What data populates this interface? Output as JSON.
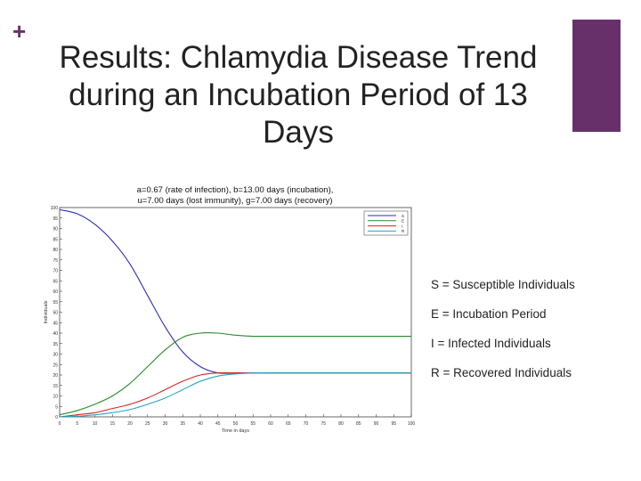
{
  "slide": {
    "plus_symbol": "+",
    "title": "Results: Chlamydia Disease Trend during an Incubation Period of 13 Days",
    "accent_color": "#67306a"
  },
  "legend_text": [
    "S = Susceptible Individuals",
    "E = Incubation Period",
    "I = Infected Individuals",
    "R = Recovered Individuals"
  ],
  "chart_data": {
    "type": "line",
    "title_line1": "a=0.67 (rate of infection), b=13.00 days (incubation),",
    "title_line2": "u=7.00 days (lost immunity), g=7.00 days (recovery)",
    "xlabel": "Time in days",
    "ylabel": "Individuals",
    "xlim": [
      0,
      100
    ],
    "ylim": [
      0,
      100
    ],
    "x_ticks": [
      "0",
      "5",
      "10",
      "15",
      "20",
      "25",
      "30",
      "35",
      "40",
      "45",
      "50",
      "55",
      "60",
      "65",
      "70",
      "75",
      "80",
      "85",
      "90",
      "95",
      "100"
    ],
    "y_ticks": [
      "0",
      "5",
      "10",
      "15",
      "20",
      "25",
      "30",
      "35",
      "40",
      "45",
      "50",
      "55",
      "60",
      "65",
      "70",
      "75",
      "80",
      "85",
      "90",
      "95",
      "100"
    ],
    "grid": false,
    "legend_position": "top-right",
    "x": [
      0,
      5,
      10,
      15,
      20,
      25,
      30,
      35,
      40,
      45,
      50,
      55,
      60,
      65,
      70,
      75,
      80,
      85,
      90,
      95,
      100
    ],
    "series": [
      {
        "name": "S",
        "color": "#2b2fb8",
        "values": [
          99,
          97,
          92,
          84,
          73,
          58,
          43,
          31,
          24,
          21,
          21,
          21,
          21,
          21,
          21,
          21,
          21,
          21,
          21,
          21,
          21
        ]
      },
      {
        "name": "E",
        "color": "#2a8a2a",
        "values": [
          1,
          3,
          6,
          10,
          16,
          24,
          32,
          38,
          40,
          40,
          39,
          38.5,
          38.5,
          38.5,
          38.5,
          38.5,
          38.5,
          38.5,
          38.5,
          38.5,
          38.5
        ]
      },
      {
        "name": "I",
        "color": "#d62222",
        "values": [
          0,
          1,
          2,
          4,
          6,
          9,
          13,
          17,
          20,
          21,
          21,
          21,
          21,
          21,
          21,
          21,
          21,
          21,
          21,
          21,
          21
        ]
      },
      {
        "name": "R",
        "color": "#22a6c6",
        "values": [
          0,
          0.3,
          1,
          2,
          3.5,
          6,
          9,
          13,
          17,
          19.5,
          20.5,
          21,
          21,
          21,
          21,
          21,
          21,
          21,
          21,
          21,
          21
        ]
      }
    ]
  }
}
